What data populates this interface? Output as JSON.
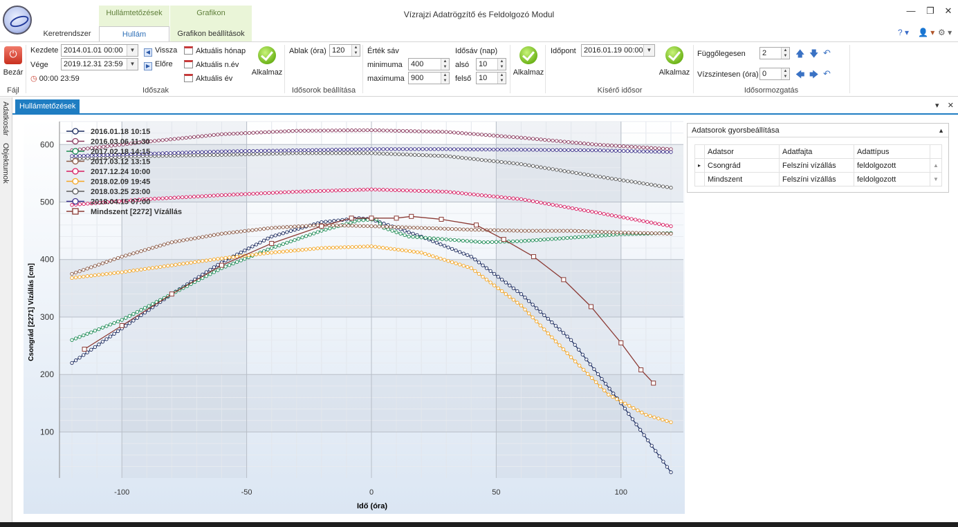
{
  "window": {
    "title": "Vízrajzi Adatrögzítő és Feldolgozó Modul",
    "minimize": "—",
    "restore": "❐",
    "close": "✕"
  },
  "ribbon_tabs": {
    "context_groups": [
      "Hullámtetőzések",
      "Grafikon"
    ],
    "tabs": [
      "Keretrendszer",
      "Hullám",
      "Grafikon beállítások"
    ],
    "active_tab": "Hullám"
  },
  "help": {
    "help": "? ▾",
    "user": "👤 ▾",
    "settings": "⚙ ▾"
  },
  "ribbon": {
    "file": {
      "close_label": "Bezár",
      "group_label": "Fájl"
    },
    "period": {
      "start_label": "Kezdete",
      "start_value": "2014.01.01 00:00",
      "end_label": "Vége",
      "end_value": "2019.12.31 23:59",
      "time_value": "00:00 23:59",
      "back_label": "Vissza",
      "forward_label": "Előre",
      "current_month": "Aktuális hónap",
      "current_quarter": "Aktuális n.év",
      "current_year": "Aktuális év",
      "apply_label": "Alkalmaz",
      "group_label": "Időszak"
    },
    "series_settings": {
      "window_label": "Ablak (óra)",
      "window_value": "120",
      "group_label": "Idősorok beállítása"
    },
    "value_band": {
      "title": "Érték sáv",
      "min_label": "minimuma",
      "min_value": "400",
      "max_label": "maximuma",
      "max_value": "900",
      "time_band_title": "Idősáv (nap)",
      "lower_label": "alsó",
      "lower_value": "10",
      "upper_label": "felső",
      "upper_value": "10",
      "apply_label": "Alkalmaz"
    },
    "companion": {
      "time_label": "Időpont",
      "time_value": "2016.01.19 00:00",
      "apply_label": "Alkalmaz",
      "group_label": "Kísérő idősor"
    },
    "movement": {
      "vertical_label": "Függőlegesen",
      "vertical_value": "2",
      "horizontal_label": "Vízszintesen (óra)",
      "horizontal_value": "0",
      "group_label": "Idősormozgatás"
    }
  },
  "sidebar": {
    "tabs": [
      "Adatkosár",
      "Objektumok"
    ]
  },
  "document": {
    "tab_label": "Hullámtetőzések",
    "ctrl_dropdown": "▾",
    "ctrl_close": "✕"
  },
  "quick_settings": {
    "title": "Adatsorok gyorsbeállítása",
    "columns": [
      "Adatsor",
      "Adatfajta",
      "Adattípus"
    ],
    "rows": [
      [
        "Csongrád",
        "Felszíni vízállás",
        "feldolgozott"
      ],
      [
        "Mindszent",
        "Felszíni vízállás",
        "feldolgozott"
      ]
    ]
  },
  "chart_data": {
    "type": "line",
    "xlabel": "Idő (óra)",
    "ylabel": "Csongrád [2271] Vízállás [cm]",
    "xlim": [
      -125,
      125
    ],
    "ylim": [
      20,
      640
    ],
    "xticks": [
      -100,
      -50,
      0,
      50,
      100
    ],
    "yticks": [
      100,
      200,
      300,
      400,
      500,
      600
    ],
    "legend_position": "top-left",
    "series": [
      {
        "name": "2016.01.18 10:15",
        "color": "#1b2a5e",
        "x": [
          -120,
          -100,
          -80,
          -60,
          -40,
          -20,
          -5,
          0,
          10,
          20,
          40,
          60,
          80,
          100,
          120
        ],
        "y": [
          220,
          280,
          340,
          395,
          440,
          465,
          472,
          470,
          455,
          440,
          405,
          340,
          260,
          150,
          30
        ]
      },
      {
        "name": "2016.03.06 11:30",
        "color": "#8b3a5e",
        "x": [
          -120,
          -90,
          -60,
          -30,
          0,
          30,
          60,
          90,
          120
        ],
        "y": [
          590,
          605,
          618,
          624,
          625,
          622,
          612,
          600,
          592
        ]
      },
      {
        "name": "2017.02.18 14:15",
        "color": "#1a8a52",
        "x": [
          -120,
          -100,
          -80,
          -60,
          -40,
          -20,
          -5,
          2,
          5,
          15,
          30,
          45,
          60,
          80,
          100,
          120
        ],
        "y": [
          260,
          295,
          340,
          385,
          420,
          450,
          468,
          470,
          455,
          440,
          435,
          430,
          432,
          438,
          444,
          446
        ]
      },
      {
        "name": "2017.03.12 13:15",
        "color": "#8b5a46",
        "x": [
          -120,
          -100,
          -80,
          -60,
          -40,
          -20,
          0,
          20,
          40,
          60,
          80,
          100,
          120
        ],
        "y": [
          375,
          405,
          430,
          445,
          455,
          460,
          458,
          455,
          452,
          450,
          450,
          447,
          445
        ]
      },
      {
        "name": "2017.12.24 10:00",
        "color": "#d81b60",
        "x": [
          -120,
          -90,
          -60,
          -30,
          0,
          30,
          60,
          90,
          120
        ],
        "y": [
          495,
          505,
          512,
          518,
          522,
          518,
          505,
          482,
          458
        ]
      },
      {
        "name": "2018.02.09 19:45",
        "color": "#f5a623",
        "x": [
          -120,
          -100,
          -80,
          -60,
          -40,
          -20,
          0,
          20,
          40,
          60,
          80,
          95,
          110,
          120
        ],
        "y": [
          368,
          378,
          390,
          402,
          412,
          420,
          423,
          412,
          385,
          320,
          230,
          165,
          130,
          117
        ]
      },
      {
        "name": "2018.03.25 23:00",
        "color": "#5a5a5a",
        "x": [
          -120,
          -90,
          -60,
          -30,
          0,
          30,
          60,
          90,
          120
        ],
        "y": [
          575,
          580,
          582,
          585,
          585,
          580,
          566,
          545,
          525
        ]
      },
      {
        "name": "2018.04.15 07:00",
        "color": "#3a2f8a",
        "x": [
          -120,
          -90,
          -60,
          -30,
          0,
          30,
          60,
          90,
          120
        ],
        "y": [
          580,
          584,
          588,
          590,
          592,
          592,
          591,
          590,
          587
        ]
      },
      {
        "name": "Mindszent [2272] Vízállás",
        "color": "#8b3a34",
        "marker": "square",
        "x": [
          -115,
          -100,
          -80,
          -60,
          -40,
          -20,
          -8,
          0,
          10,
          16,
          28,
          42,
          53,
          65,
          77,
          88,
          100,
          108,
          113
        ],
        "y": [
          244,
          285,
          340,
          390,
          428,
          458,
          472,
          472,
          472,
          475,
          470,
          460,
          435,
          405,
          365,
          318,
          255,
          208,
          185
        ]
      }
    ]
  }
}
